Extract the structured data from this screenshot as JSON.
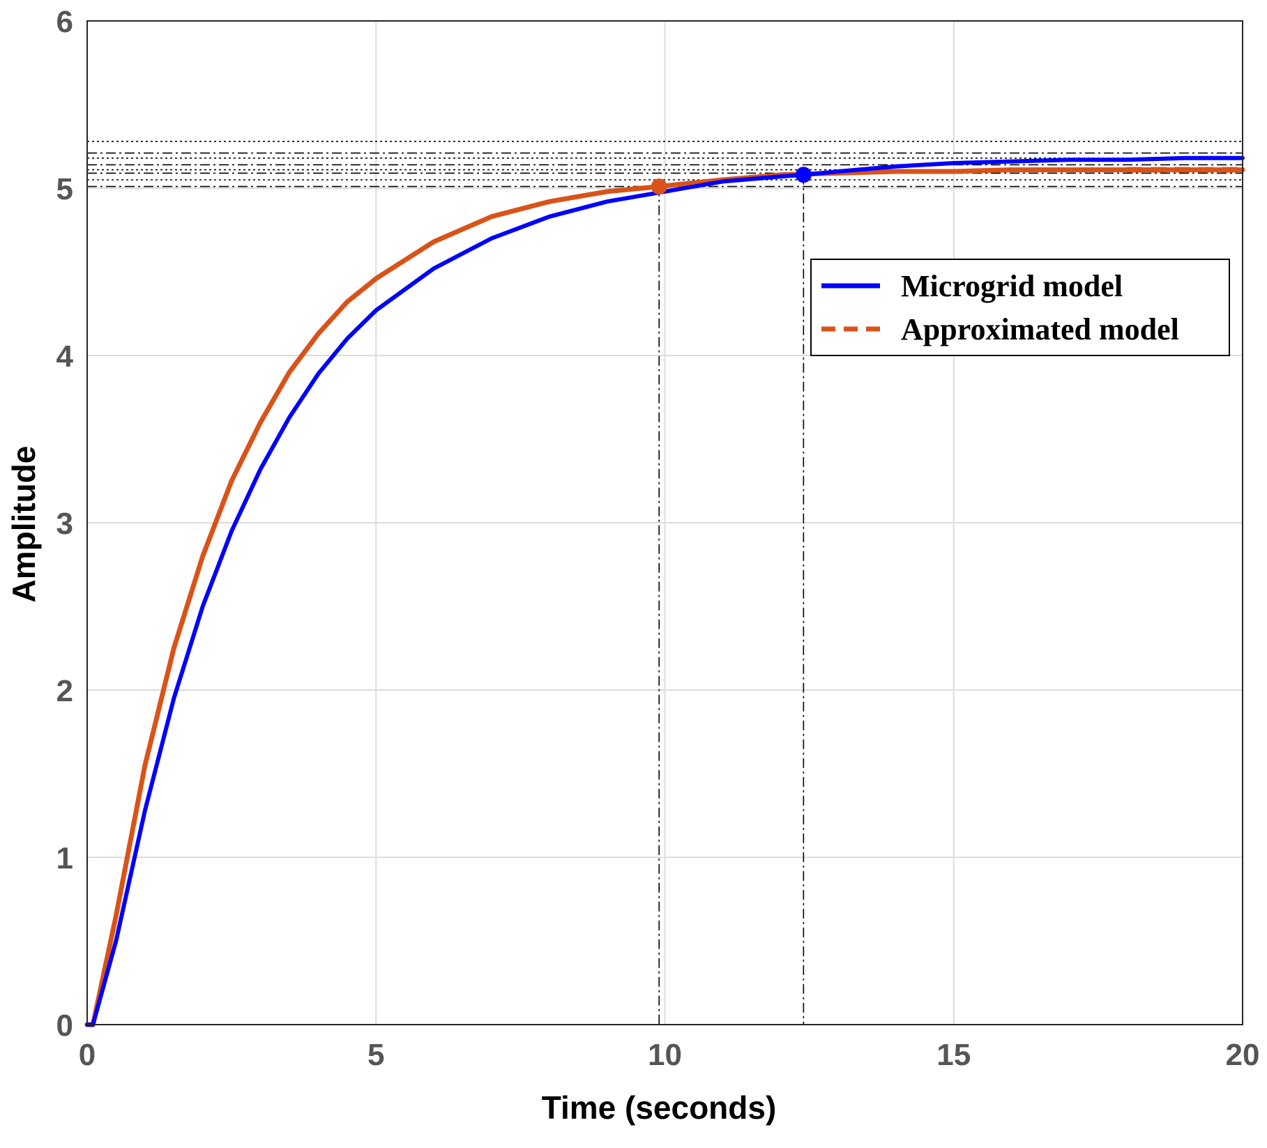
{
  "chart_data": {
    "type": "line",
    "title": "",
    "xlabel": "Time (seconds)",
    "ylabel": "Amplitude",
    "xlim": [
      0,
      20
    ],
    "ylim": [
      0,
      6
    ],
    "xticks": [
      0,
      5,
      10,
      15,
      20
    ],
    "yticks": [
      0,
      1,
      2,
      3,
      4,
      5,
      6
    ],
    "xtick_labels": [
      "0",
      "5",
      "10",
      "15",
      "20"
    ],
    "ytick_labels": [
      "0",
      "1",
      "2",
      "3",
      "4",
      "5",
      "6"
    ],
    "grid": true,
    "legend_position": "upper-right",
    "series": [
      {
        "name": "Microgrid model",
        "color": "#0000ff",
        "line_style": "solid",
        "x": [
          0,
          0.1,
          0.5,
          1,
          1.5,
          2,
          2.5,
          3,
          3.5,
          4,
          4.5,
          5,
          6,
          7,
          8,
          9,
          10,
          11,
          12,
          12.4,
          13,
          14,
          15,
          16,
          17,
          18,
          19,
          20
        ],
        "y": [
          0,
          0.0,
          0.5,
          1.28,
          1.95,
          2.5,
          2.95,
          3.32,
          3.63,
          3.89,
          4.1,
          4.27,
          4.52,
          4.7,
          4.83,
          4.92,
          4.98,
          5.04,
          5.07,
          5.08,
          5.1,
          5.13,
          5.15,
          5.16,
          5.17,
          5.17,
          5.18,
          5.18
        ]
      },
      {
        "name": "Approximated model",
        "color": "#d95319",
        "line_style": "dashed",
        "x": [
          0,
          0.1,
          0.5,
          1,
          1.5,
          2,
          2.5,
          3,
          3.5,
          4,
          4.5,
          5,
          6,
          7,
          8,
          9,
          9.9,
          11,
          12,
          13,
          14,
          15,
          16,
          17,
          18,
          19,
          20
        ],
        "y": [
          0,
          0.0,
          0.65,
          1.55,
          2.25,
          2.8,
          3.25,
          3.6,
          3.9,
          4.13,
          4.32,
          4.46,
          4.68,
          4.83,
          4.92,
          4.98,
          5.01,
          5.05,
          5.08,
          5.09,
          5.1,
          5.1,
          5.11,
          5.11,
          5.11,
          5.11,
          5.11
        ]
      }
    ],
    "settling_markers": [
      {
        "series": "Approximated model",
        "x": 9.9,
        "y": 5.01
      },
      {
        "series": "Microgrid model",
        "x": 12.4,
        "y": 5.08
      }
    ],
    "reference_lines_y": [
      5.01,
      5.05,
      5.09,
      5.11,
      5.14,
      5.18,
      5.21,
      5.28
    ],
    "reference_lines_x": [
      9.9,
      12.4
    ]
  }
}
